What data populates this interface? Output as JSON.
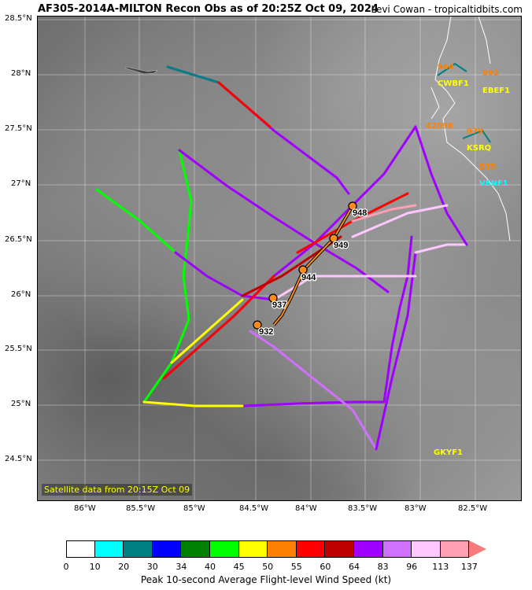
{
  "header": {
    "title": "AF305-2014A-MILTON Recon Obs as of 20:25Z Oct 09, 2024",
    "credit": "Levi Cowan - tropicaltidbits.com"
  },
  "axes": {
    "lat_labels": [
      "28.5°N",
      "28°N",
      "27.5°N",
      "27°N",
      "26.5°N",
      "26°N",
      "25.5°N",
      "25°N",
      "24.5°N"
    ],
    "lon_labels": [
      "86°W",
      "85.5°W",
      "85°W",
      "84.5°W",
      "84°W",
      "83.5°W",
      "83°W",
      "82.5°W"
    ]
  },
  "satellite_label": "Satellite data from 20:15Z Oct 09",
  "track": {
    "pressures": [
      "932",
      "937",
      "944",
      "949",
      "948"
    ]
  },
  "stations": [
    {
      "name": "CWBF1",
      "color": "#ffff00"
    },
    {
      "name": "EBEF1",
      "color": "#ffff00"
    },
    {
      "name": "KSRQ",
      "color": "#ffff00"
    },
    {
      "name": "VENF1",
      "color": "#00ffff"
    },
    {
      "name": "GKYF1",
      "color": "#ffff00"
    },
    {
      "name": "42098",
      "color": "#ff8000"
    }
  ],
  "station_values": [
    "968",
    "992",
    "979",
    "935"
  ],
  "colorbar": {
    "title": "Peak 10-second Average Flight-level Wind Speed (kt)",
    "labels": [
      "0",
      "10",
      "20",
      "30",
      "34",
      "40",
      "45",
      "50",
      "55",
      "60",
      "64",
      "83",
      "96",
      "113",
      "137"
    ],
    "colors": [
      "#ffffff",
      "#00ffff",
      "#008080",
      "#0000ff",
      "#008000",
      "#00ff00",
      "#ffff00",
      "#ff8000",
      "#ff0000",
      "#c00000",
      "#a000ff",
      "#d070ff",
      "#ffc8ff",
      "#ffa0b4"
    ]
  }
}
